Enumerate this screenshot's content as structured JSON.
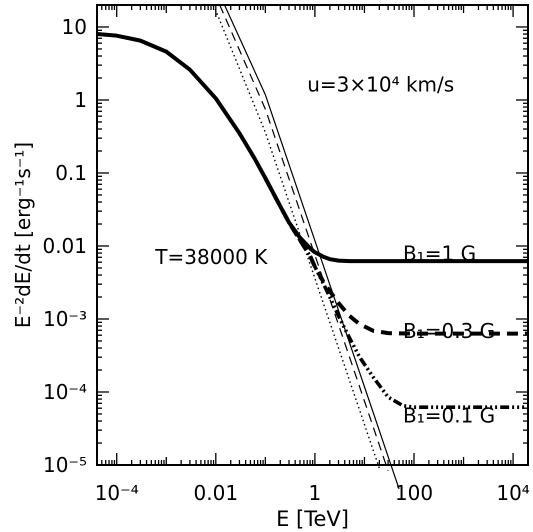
{
  "chart_data": {
    "type": "line",
    "xlabel": "E [TeV]",
    "ylabel": "E⁻²dE/dt [erg⁻¹s⁻¹]",
    "xscale": "log",
    "yscale": "log",
    "xlim": [
      4e-05,
      20000
    ],
    "ylim": [
      1e-05,
      20
    ],
    "x_ticks": [
      {
        "value": 0.0001,
        "label": "10⁻⁴"
      },
      {
        "value": 0.01,
        "label": "0.01"
      },
      {
        "value": 1,
        "label": "1"
      },
      {
        "value": 100,
        "label": "100"
      },
      {
        "value": 10000,
        "label": "10⁴"
      }
    ],
    "y_ticks": [
      {
        "value": 10,
        "label": "10"
      },
      {
        "value": 1,
        "label": "1"
      },
      {
        "value": 0.1,
        "label": "0.1"
      },
      {
        "value": 0.01,
        "label": "0.01"
      },
      {
        "value": 0.001,
        "label": "10⁻³"
      },
      {
        "value": 0.0001,
        "label": "10⁻⁴"
      },
      {
        "value": 1e-05,
        "label": "10⁻⁵"
      }
    ],
    "annotations": [
      {
        "text": "u=3×10⁴ km/s",
        "x": 0.7,
        "y": 1.3
      },
      {
        "text": "T=38000 K",
        "x": 0.0006,
        "y": 0.0057
      },
      {
        "text": "B₁=1 G",
        "x": 60,
        "y": 0.0063
      },
      {
        "text": "B₁=0.3 G",
        "x": 60,
        "y": 0.00055
      },
      {
        "text": "B₁=0.1 G",
        "x": 60,
        "y": 3.8e-05
      }
    ],
    "series": [
      {
        "style": "thick-solid",
        "x": [
          4e-05,
          0.0001,
          0.0003,
          0.001,
          0.003,
          0.01,
          0.03,
          0.06,
          0.1,
          0.2,
          0.3,
          0.5,
          0.8,
          1,
          1.5,
          2,
          3,
          5,
          10,
          100,
          1000,
          20000
        ],
        "y": [
          8,
          7.6,
          6.5,
          4.6,
          2.6,
          1.05,
          0.35,
          0.16,
          0.085,
          0.035,
          0.021,
          0.013,
          0.0093,
          0.0082,
          0.0071,
          0.0066,
          0.0063,
          0.0062,
          0.0062,
          0.0062,
          0.0062,
          0.0062
        ]
      },
      {
        "style": "thick-dashed",
        "x": [
          0.1,
          0.2,
          0.3,
          0.5,
          0.8,
          1,
          1.5,
          2,
          3,
          5,
          8,
          15,
          30,
          100,
          1000,
          20000
        ],
        "y": [
          0.085,
          0.035,
          0.021,
          0.012,
          0.0073,
          0.0052,
          0.0032,
          0.0024,
          0.00165,
          0.0011,
          0.00085,
          0.00069,
          0.00064,
          0.00063,
          0.00063,
          0.00063
        ]
      },
      {
        "style": "thick-dotdash",
        "x": [
          0.1,
          0.2,
          0.3,
          0.5,
          0.8,
          1,
          1.5,
          2,
          3,
          5,
          8,
          15,
          30,
          60,
          100,
          1000,
          20000
        ],
        "y": [
          0.085,
          0.035,
          0.021,
          0.012,
          0.0073,
          0.0052,
          0.003,
          0.002,
          0.0011,
          0.00055,
          0.0003,
          0.00016,
          8.5e-05,
          6.5e-05,
          6.2e-05,
          6.2e-05,
          6.2e-05
        ]
      },
      {
        "style": "thin-solid",
        "x": [
          0.015,
          0.1,
          1,
          10,
          50
        ],
        "y": [
          20,
          1.18,
          0.0118,
          0.000118,
          4.7e-06
        ]
      },
      {
        "style": "thin-dashed",
        "x": [
          0.012,
          0.1,
          1,
          10,
          30
        ],
        "y": [
          20,
          0.75,
          0.0075,
          7.5e-05,
          8.3e-06
        ]
      },
      {
        "style": "thin-dotted",
        "x": [
          0.009,
          0.1,
          1,
          10,
          20
        ],
        "y": [
          20,
          0.36,
          0.0036,
          3.6e-05,
          9e-06
        ]
      }
    ]
  }
}
